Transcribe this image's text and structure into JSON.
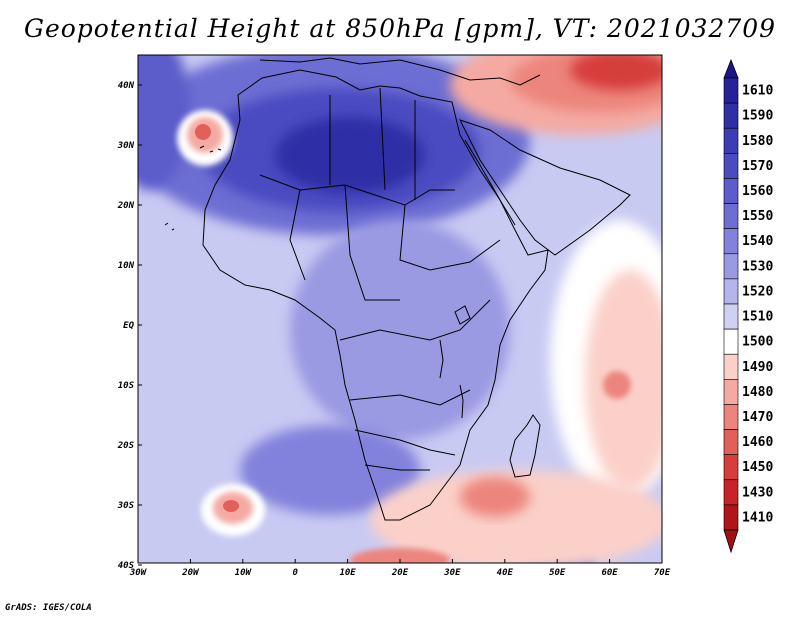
{
  "title": "Geopotential Height at 850hPa [gpm], VT: 2021032709",
  "credit": "GrADS: IGES/COLA",
  "lon_labels": [
    "30W",
    "20W",
    "10W",
    "0",
    "10E",
    "20E",
    "30E",
    "40E",
    "50E",
    "60E",
    "70E"
  ],
  "lat_labels": [
    "40N",
    "30N",
    "20N",
    "10N",
    "EQ",
    "10S",
    "20S",
    "30S",
    "40S"
  ],
  "colorbar": {
    "levels": [
      "1610",
      "1590",
      "1580",
      "1570",
      "1560",
      "1550",
      "1540",
      "1530",
      "1520",
      "1510",
      "1500",
      "1490",
      "1480",
      "1470",
      "1460",
      "1450",
      "1430",
      "1410"
    ],
    "colors": [
      "#27219a",
      "#2f2fa6",
      "#3c3cb4",
      "#4b4bc1",
      "#5c5cca",
      "#6d6ed3",
      "#8282dc",
      "#9a9ae3",
      "#b5b5ec",
      "#d0d0f4",
      "#ffffff",
      "#fbd0c9",
      "#f4aaa2",
      "#ec857d",
      "#e2605a",
      "#d63e3b",
      "#c82326",
      "#b01519"
    ]
  },
  "colors": {
    "top_arrow": "#1c1585",
    "bottom_arrow": "#a01015",
    "background_level": "#c9caf2"
  }
}
